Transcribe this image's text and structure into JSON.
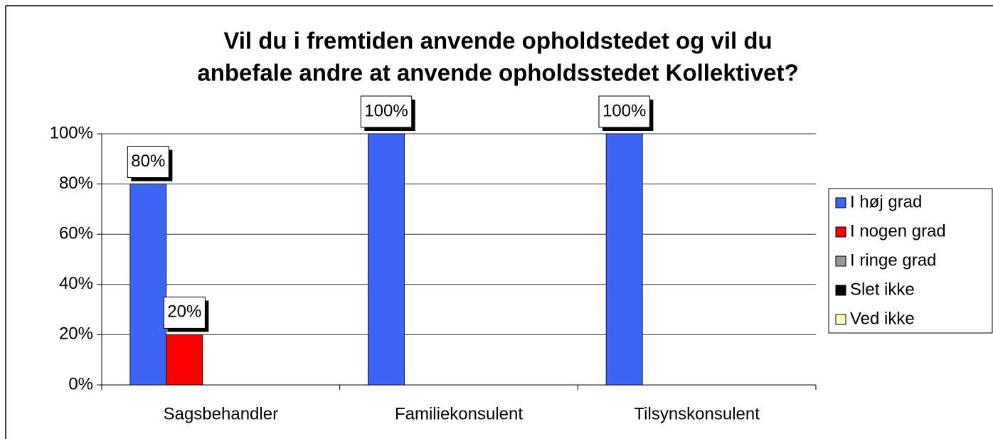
{
  "chart_data": {
    "type": "bar",
    "title": [
      "Vil du i fremtiden anvende opholdstedet og vil du",
      "anbefale andre at anvende opholdsstedet Kollektivet?"
    ],
    "categories": [
      "Sagsbehandler",
      "Familiekonsulent",
      "Tilsynskonsulent"
    ],
    "series": [
      {
        "name": "I høj grad",
        "color": "#3d66f5",
        "values": [
          80,
          100,
          100
        ],
        "value_labels": [
          "80%",
          "100%",
          "100%"
        ]
      },
      {
        "name": "I nogen grad",
        "color": "#ff0000",
        "values": [
          20,
          0,
          0
        ],
        "value_labels": [
          "20%",
          null,
          null
        ]
      },
      {
        "name": "I ringe grad",
        "color": "#999999",
        "values": [
          0,
          0,
          0
        ]
      },
      {
        "name": "Slet ikke",
        "color": "#000000",
        "values": [
          0,
          0,
          0
        ]
      },
      {
        "name": "Ved ikke",
        "color": "#ffffc0",
        "values": [
          0,
          0,
          0
        ]
      }
    ],
    "ylim": [
      0,
      100
    ],
    "yticks": [
      {
        "value": 0,
        "label": "0%"
      },
      {
        "value": 20,
        "label": "20%"
      },
      {
        "value": 40,
        "label": "40%"
      },
      {
        "value": 60,
        "label": "60%"
      },
      {
        "value": 80,
        "label": "80%"
      },
      {
        "value": 100,
        "label": "100%"
      }
    ],
    "grid": true,
    "legend": "right"
  }
}
